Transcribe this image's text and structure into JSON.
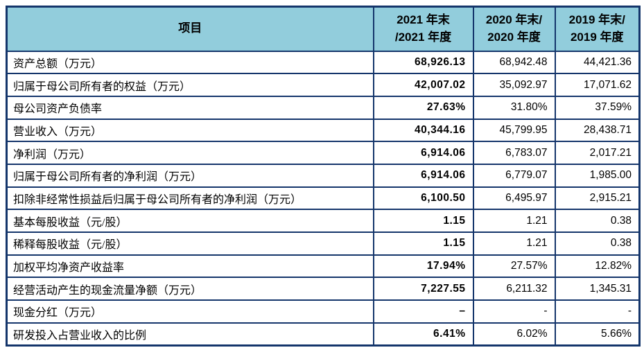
{
  "page": {
    "background": "#ffffff"
  },
  "table": {
    "colors": {
      "border": "#14356b",
      "header_bg": "#92cddc",
      "text": "#000000"
    },
    "header": {
      "item": "项目",
      "col2021_line1": "2021 年末",
      "col2021_line2": "/2021 年度",
      "col2020_line1": "2020 年末/",
      "col2020_line2": "2020 年度",
      "col2019_line1": "2019 年末/",
      "col2019_line2": "2019 年度"
    },
    "rows": [
      {
        "label": "资产总额（万元）",
        "v2021": "68,926.13",
        "v2020": "68,942.48",
        "v2019": "44,421.36"
      },
      {
        "label": "归属于母公司所有者的权益（万元）",
        "v2021": "42,007.02",
        "v2020": "35,092.97",
        "v2019": "17,071.62"
      },
      {
        "label": "母公司资产负债率",
        "v2021": "27.63%",
        "v2020": "31.80%",
        "v2019": "37.59%"
      },
      {
        "label": "营业收入（万元）",
        "v2021": "40,344.16",
        "v2020": "45,799.95",
        "v2019": "28,438.71"
      },
      {
        "label": "净利润（万元）",
        "v2021": "6,914.06",
        "v2020": "6,783.07",
        "v2019": "2,017.21"
      },
      {
        "label": "归属于母公司所有者的净利润（万元）",
        "v2021": "6,914.06",
        "v2020": "6,779.07",
        "v2019": "1,985.00"
      },
      {
        "label": "扣除非经常性损益后归属于母公司所有者的净利润（万元）",
        "v2021": "6,100.50",
        "v2020": "6,495.97",
        "v2019": "2,915.21"
      },
      {
        "label": "基本每股收益（元/股）",
        "v2021": "1.15",
        "v2020": "1.21",
        "v2019": "0.38"
      },
      {
        "label": "稀释每股收益（元/股）",
        "v2021": "1.15",
        "v2020": "1.21",
        "v2019": "0.38"
      },
      {
        "label": "加权平均净资产收益率",
        "v2021": "17.94%",
        "v2020": "27.57%",
        "v2019": "12.82%"
      },
      {
        "label": "经营活动产生的现金流量净额（万元）",
        "v2021": "7,227.55",
        "v2020": "6,211.32",
        "v2019": "1,345.31"
      },
      {
        "label": "现金分红（万元）",
        "v2021": "–",
        "v2020": "-",
        "v2019": "-"
      },
      {
        "label": "研发投入占营业收入的比例",
        "v2021": "6.41%",
        "v2020": "6.02%",
        "v2019": "5.66%"
      }
    ]
  }
}
